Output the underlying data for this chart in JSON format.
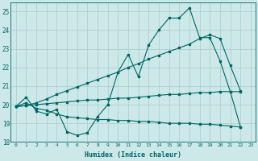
{
  "xlabel": "Humidex (Indice chaleur)",
  "xlim": [
    -0.5,
    23.5
  ],
  "ylim": [
    18,
    25.5
  ],
  "yticks": [
    18,
    19,
    20,
    21,
    22,
    23,
    24,
    25
  ],
  "xticks": [
    0,
    1,
    2,
    3,
    4,
    5,
    6,
    7,
    8,
    9,
    10,
    11,
    12,
    13,
    14,
    15,
    16,
    17,
    18,
    19,
    20,
    21,
    22,
    23
  ],
  "bg_color": "#cce8e8",
  "line_color": "#006666",
  "grid_color": "#aacccc",
  "series1_x": [
    0,
    1,
    2,
    3,
    4,
    5,
    6,
    7,
    8,
    9,
    10,
    11,
    12,
    13,
    14,
    15,
    16,
    17,
    18,
    19,
    20,
    21,
    22
  ],
  "series1_y": [
    19.9,
    20.4,
    19.65,
    19.5,
    19.75,
    18.55,
    18.35,
    18.5,
    19.35,
    20.0,
    21.75,
    22.7,
    21.5,
    23.2,
    24.0,
    24.65,
    24.65,
    25.2,
    23.6,
    23.6,
    22.35,
    20.7,
    18.8
  ],
  "series2_x": [
    0,
    1,
    2,
    3,
    4,
    5,
    6,
    7,
    8,
    9,
    10,
    11,
    12,
    13,
    14,
    15,
    16,
    17,
    18,
    19,
    20,
    21,
    22
  ],
  "series2_y": [
    19.9,
    20.1,
    19.8,
    19.7,
    19.5,
    19.35,
    19.3,
    19.25,
    19.2,
    19.2,
    19.15,
    19.15,
    19.1,
    19.1,
    19.05,
    19.0,
    19.0,
    19.0,
    18.95,
    18.95,
    18.9,
    18.85,
    18.8
  ],
  "series3_x": [
    0,
    1,
    2,
    3,
    4,
    5,
    6,
    7,
    8,
    9,
    10,
    11,
    12,
    13,
    14,
    15,
    16,
    17,
    18,
    19,
    20,
    21,
    22
  ],
  "series3_y": [
    19.9,
    19.95,
    20.1,
    20.3,
    20.55,
    20.75,
    20.95,
    21.15,
    21.35,
    21.55,
    21.75,
    22.0,
    22.2,
    22.45,
    22.65,
    22.85,
    23.05,
    23.25,
    23.55,
    23.75,
    23.55,
    22.1,
    20.75
  ],
  "series4_x": [
    0,
    1,
    2,
    3,
    4,
    5,
    6,
    7,
    8,
    9,
    10,
    11,
    12,
    13,
    14,
    15,
    16,
    17,
    18,
    19,
    20,
    21,
    22
  ],
  "series4_y": [
    19.9,
    19.95,
    20.0,
    20.05,
    20.1,
    20.15,
    20.2,
    20.25,
    20.25,
    20.3,
    20.35,
    20.35,
    20.4,
    20.45,
    20.5,
    20.55,
    20.55,
    20.6,
    20.65,
    20.65,
    20.7,
    20.7,
    20.7
  ]
}
